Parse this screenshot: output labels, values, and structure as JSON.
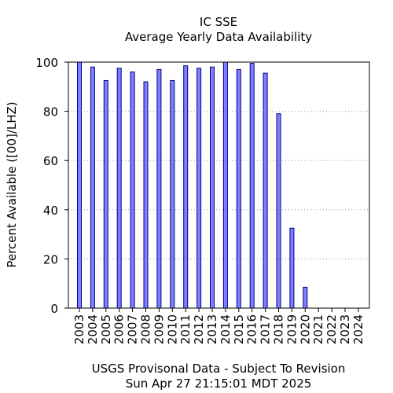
{
  "chart_data": {
    "type": "bar",
    "title": "IC SSE",
    "subtitle": "Average Yearly Data Availability",
    "ylabel": "Percent Available ([00]/LHZ)",
    "footer_line1": "USGS Provisonal Data - Subject To Revision",
    "footer_line2": "Sun Apr 27 21:15:01 MDT 2025",
    "ylim": [
      0,
      100
    ],
    "yticks": [
      "0",
      "20",
      "40",
      "60",
      "80",
      "100"
    ],
    "grid": "horizontal-dotted",
    "bar_color": "#7f7fff",
    "bar_edge_color": "#00008b",
    "categories": [
      "2003",
      "2004",
      "2005",
      "2006",
      "2007",
      "2008",
      "2009",
      "2010",
      "2011",
      "2012",
      "2013",
      "2014",
      "2015",
      "2016",
      "2017",
      "2018",
      "2019",
      "2020",
      "2021",
      "2022",
      "2023",
      "2024"
    ],
    "values": [
      100,
      98,
      92.5,
      97.5,
      96,
      92,
      97,
      92.5,
      98.5,
      97.5,
      98,
      100,
      97,
      99.5,
      95.5,
      79,
      32.5,
      8.5,
      0,
      0,
      0,
      0
    ]
  }
}
